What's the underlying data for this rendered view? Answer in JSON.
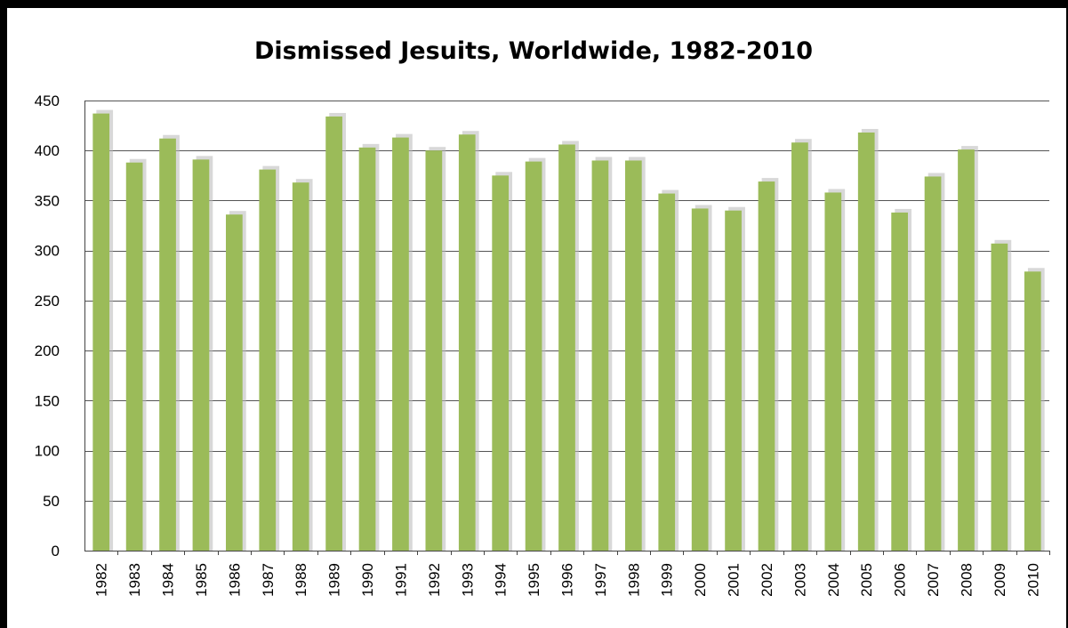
{
  "chart_data": {
    "type": "bar",
    "title": "Dismissed Jesuits, Worldwide, 1982-2010",
    "xlabel": "",
    "ylabel": "",
    "categories": [
      "1982",
      "1983",
      "1984",
      "1985",
      "1986",
      "1987",
      "1988",
      "1989",
      "1990",
      "1991",
      "1992",
      "1993",
      "1994",
      "1995",
      "1996",
      "1997",
      "1998",
      "1999",
      "2000",
      "2001",
      "2002",
      "2003",
      "2004",
      "2005",
      "2006",
      "2007",
      "2008",
      "2009",
      "2010"
    ],
    "values": [
      437,
      388,
      412,
      391,
      336,
      381,
      368,
      434,
      403,
      413,
      400,
      416,
      375,
      389,
      406,
      390,
      390,
      357,
      342,
      340,
      369,
      408,
      358,
      418,
      338,
      374,
      401,
      307,
      279
    ],
    "ylim": [
      0,
      450
    ],
    "yticks": [
      0,
      50,
      100,
      150,
      200,
      250,
      300,
      350,
      400,
      450
    ],
    "grid": true,
    "legend": "none",
    "bar_color": "#9bbb59",
    "shadow_color": "#b8b8b8"
  }
}
